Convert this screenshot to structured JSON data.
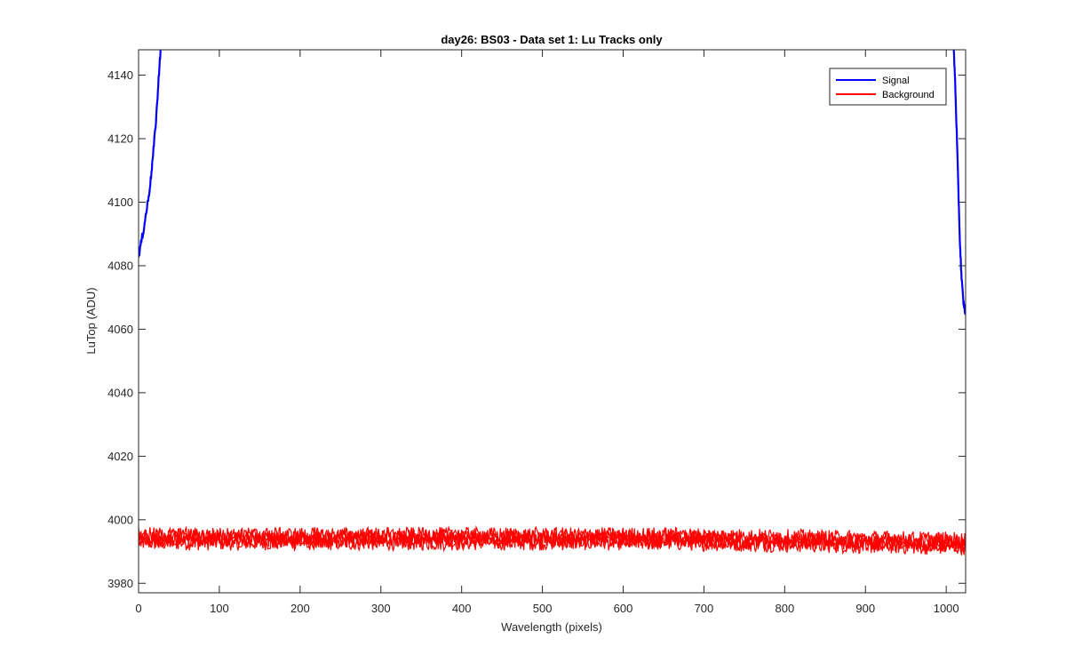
{
  "chart_data": {
    "type": "line",
    "title": "day26: BS03 - Data set 1: Lu Tracks only",
    "xlabel": "Wavelength (pixels)",
    "ylabel": "LuTop (ADU)",
    "xlim": [
      0,
      1024
    ],
    "ylim": [
      3977,
      4148
    ],
    "xticks": [
      0,
      100,
      200,
      300,
      400,
      500,
      600,
      700,
      800,
      900,
      1000
    ],
    "xtick_labels": [
      "0",
      "100",
      "200",
      "300",
      "400",
      "500",
      "600",
      "700",
      "800",
      "900",
      "1000"
    ],
    "yticks": [
      3980,
      4000,
      4020,
      4040,
      4060,
      4080,
      4100,
      4120,
      4140
    ],
    "ytick_labels": [
      "3980",
      "4000",
      "4020",
      "4040",
      "4060",
      "4080",
      "4100",
      "4120",
      "4140"
    ],
    "grid": false,
    "legend_position": "top-right",
    "series": [
      {
        "name": "Signal",
        "color": "#0000ff",
        "segments": [
          {
            "x": [
              0,
              3,
              6,
              9,
              12,
              15,
              18,
              21,
              24,
              26,
              28
            ],
            "y": [
              4083,
              4087,
              4091,
              4096,
              4101,
              4107,
              4115,
              4124,
              4135,
              4144,
              4150
            ]
          },
          {
            "x": [
              1009,
              1011,
              1013,
              1015,
              1017,
              1019,
              1021,
              1023,
              1024
            ],
            "y": [
              4150,
              4138,
              4122,
              4104,
              4087,
              4076,
              4069,
              4066,
              4065
            ]
          }
        ]
      },
      {
        "name": "Background",
        "color": "#ff0000",
        "level": 3993.5,
        "level_trend": [
          [
            0,
            3994
          ],
          [
            400,
            3994
          ],
          [
            650,
            3994
          ],
          [
            1024,
            3992.5
          ]
        ],
        "noise_amplitude": 2.5,
        "traces": 4
      }
    ]
  }
}
